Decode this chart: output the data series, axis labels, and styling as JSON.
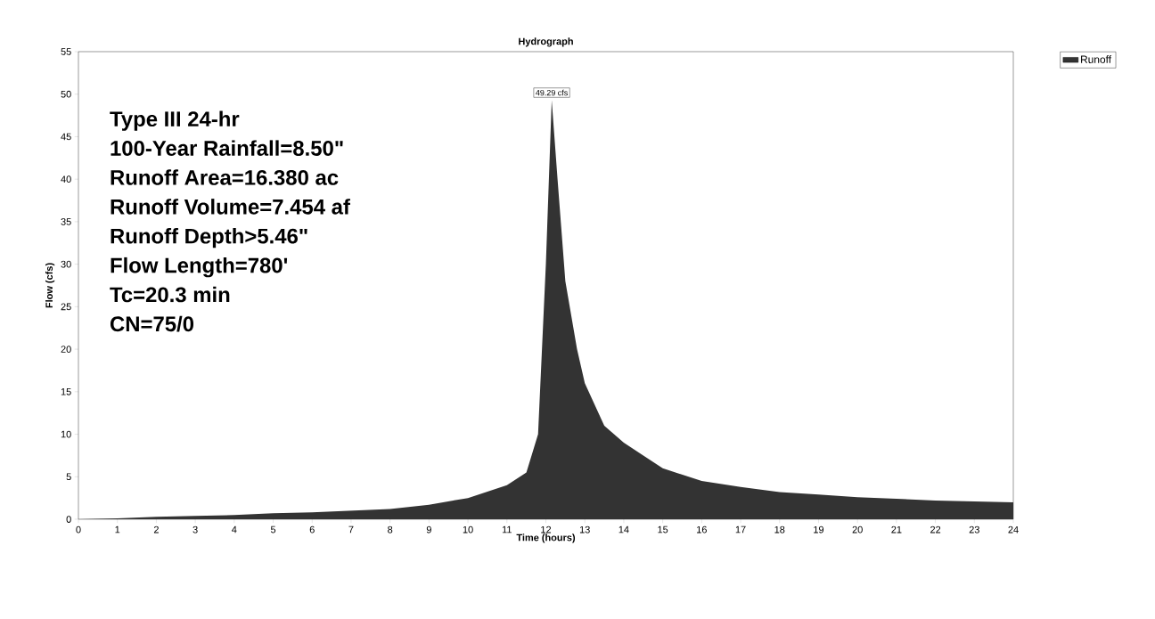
{
  "chart_data": {
    "type": "area",
    "title": "Hydrograph",
    "xlabel": "Time (hours)",
    "ylabel": "Flow (cfs)",
    "annotations": [
      "Type III 24-hr",
      "100-Year Rainfall=8.50\"",
      "Runoff Area=16.380 ac",
      "Runoff Volume=7.454 af",
      "Runoff Depth>5.46\"",
      "Flow Length=780'",
      "Tc=20.3 min",
      "CN=75/0"
    ],
    "x": [
      0,
      1,
      2,
      3,
      4,
      5,
      6,
      7,
      8,
      9,
      10,
      11,
      11.5,
      11.8,
      12.0,
      12.15,
      12.3,
      12.5,
      12.8,
      13,
      13.5,
      14,
      15,
      16,
      17,
      18,
      19,
      20,
      21,
      22,
      23,
      24
    ],
    "series": [
      {
        "name": "Runoff",
        "color": "#333333",
        "values": [
          0,
          0.1,
          0.3,
          0.4,
          0.5,
          0.7,
          0.8,
          1.0,
          1.2,
          1.7,
          2.5,
          4,
          5.5,
          10,
          30,
          49.29,
          40,
          28,
          20,
          16,
          11,
          9,
          6,
          4.5,
          3.8,
          3.2,
          2.9,
          2.6,
          2.4,
          2.2,
          2.1,
          2.0
        ],
        "value_labels": [
          null,
          null,
          null,
          null,
          null,
          null,
          null,
          null,
          null,
          null,
          null,
          null,
          null,
          null,
          null,
          "49.29 cfs",
          null,
          null,
          null,
          null,
          null,
          null,
          null,
          null,
          null,
          null,
          null,
          null,
          null,
          null,
          null,
          null
        ]
      }
    ],
    "xlim": [
      0,
      24
    ],
    "ylim": [
      0,
      55
    ],
    "xticks": [
      0,
      1,
      2,
      3,
      4,
      5,
      6,
      7,
      8,
      9,
      10,
      11,
      12,
      13,
      14,
      15,
      16,
      17,
      18,
      19,
      20,
      21,
      22,
      23,
      24
    ],
    "yticks": [
      0,
      5,
      10,
      15,
      20,
      25,
      30,
      35,
      40,
      45,
      50,
      55
    ],
    "legend": "top right"
  }
}
